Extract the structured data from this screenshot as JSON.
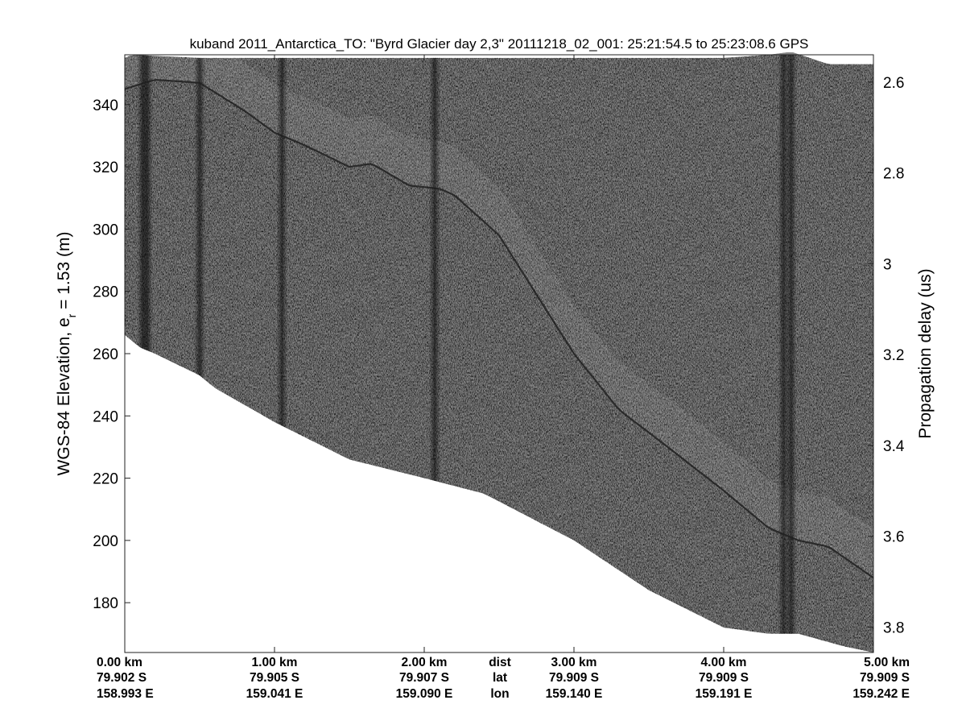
{
  "chart_data": {
    "type": "heatmap",
    "title": "kuband 2011_Antarctica_TO: \"Byrd Glacier day 2,3\"  20111218_02_001: 25:21:54.5 to 25:23:08.6 GPS",
    "ylabel": {
      "main": "WGS-84 Elevation, e",
      "sub": "r",
      "tail": " = 1.53 (m)"
    },
    "y2label": "Propagation delay (us)",
    "xlim": [
      0,
      5
    ],
    "ylim": [
      164,
      356
    ],
    "y2lim": [
      2.54,
      3.856
    ],
    "yticks": [
      180,
      200,
      220,
      240,
      260,
      280,
      300,
      320,
      340
    ],
    "y2ticks": [
      "2.6",
      "2.8",
      "3",
      "3.2",
      "3.4",
      "3.6",
      "3.8"
    ],
    "xticks": [
      {
        "dist": 0.0,
        "dist_label": "0.00 km",
        "lat": "79.902 S",
        "lon": "158.993 E"
      },
      {
        "dist": 1.0,
        "dist_label": "1.00 km",
        "lat": "79.905 S",
        "lon": "159.041 E"
      },
      {
        "dist": 2.0,
        "dist_label": "2.00 km",
        "lat": "79.907 S",
        "lon": "159.090 E"
      },
      {
        "dist": 3.0,
        "dist_label": "3.00 km",
        "lat": "79.909 S",
        "lon": "159.140 E"
      },
      {
        "dist": 4.0,
        "dist_label": "4.00 km",
        "lat": "79.909 S",
        "lon": "159.191 E"
      },
      {
        "dist": 5.0,
        "dist_label": "5.00 km",
        "lat": "79.909 S",
        "lon": "159.242 E"
      }
    ],
    "row_labels": {
      "dist": "dist",
      "lat": "lat",
      "lon": "lon"
    },
    "data_top": {
      "x": [
        0,
        0.05,
        0.5,
        1.5,
        2.0,
        2.5,
        3.0,
        3.5,
        4.0,
        4.3,
        4.45,
        4.7,
        5.0
      ],
      "y": [
        355,
        356,
        355,
        355,
        355,
        355,
        355,
        355,
        355,
        356,
        357,
        353,
        353
      ]
    },
    "data_bottom": {
      "x": [
        0,
        0.1,
        0.2,
        0.5,
        0.6,
        1.0,
        1.5,
        2.0,
        2.4,
        3.0,
        3.5,
        4.0,
        4.3,
        4.5,
        4.8,
        5.0
      ],
      "y": [
        266,
        262,
        260,
        253,
        249,
        238,
        226,
        220,
        215,
        200,
        184,
        172,
        170,
        170,
        166,
        164
      ]
    },
    "surface": {
      "x": [
        0,
        0.2,
        0.5,
        0.8,
        1.0,
        1.2,
        1.5,
        1.65,
        1.9,
        2.1,
        2.2,
        2.5,
        3.0,
        3.3,
        3.6,
        4.0,
        4.3,
        4.5,
        4.7,
        5.0
      ],
      "y": [
        345,
        348,
        347,
        338,
        331,
        327,
        320,
        321,
        314,
        313,
        311,
        298,
        260,
        242,
        231,
        216,
        204,
        200,
        198,
        188
      ]
    },
    "dark_columns_km": [
      0.12,
      0.15,
      0.5,
      1.05,
      2.07,
      4.4,
      4.45
    ],
    "colormap": [
      "#111111",
      "#f2f2f2"
    ]
  }
}
